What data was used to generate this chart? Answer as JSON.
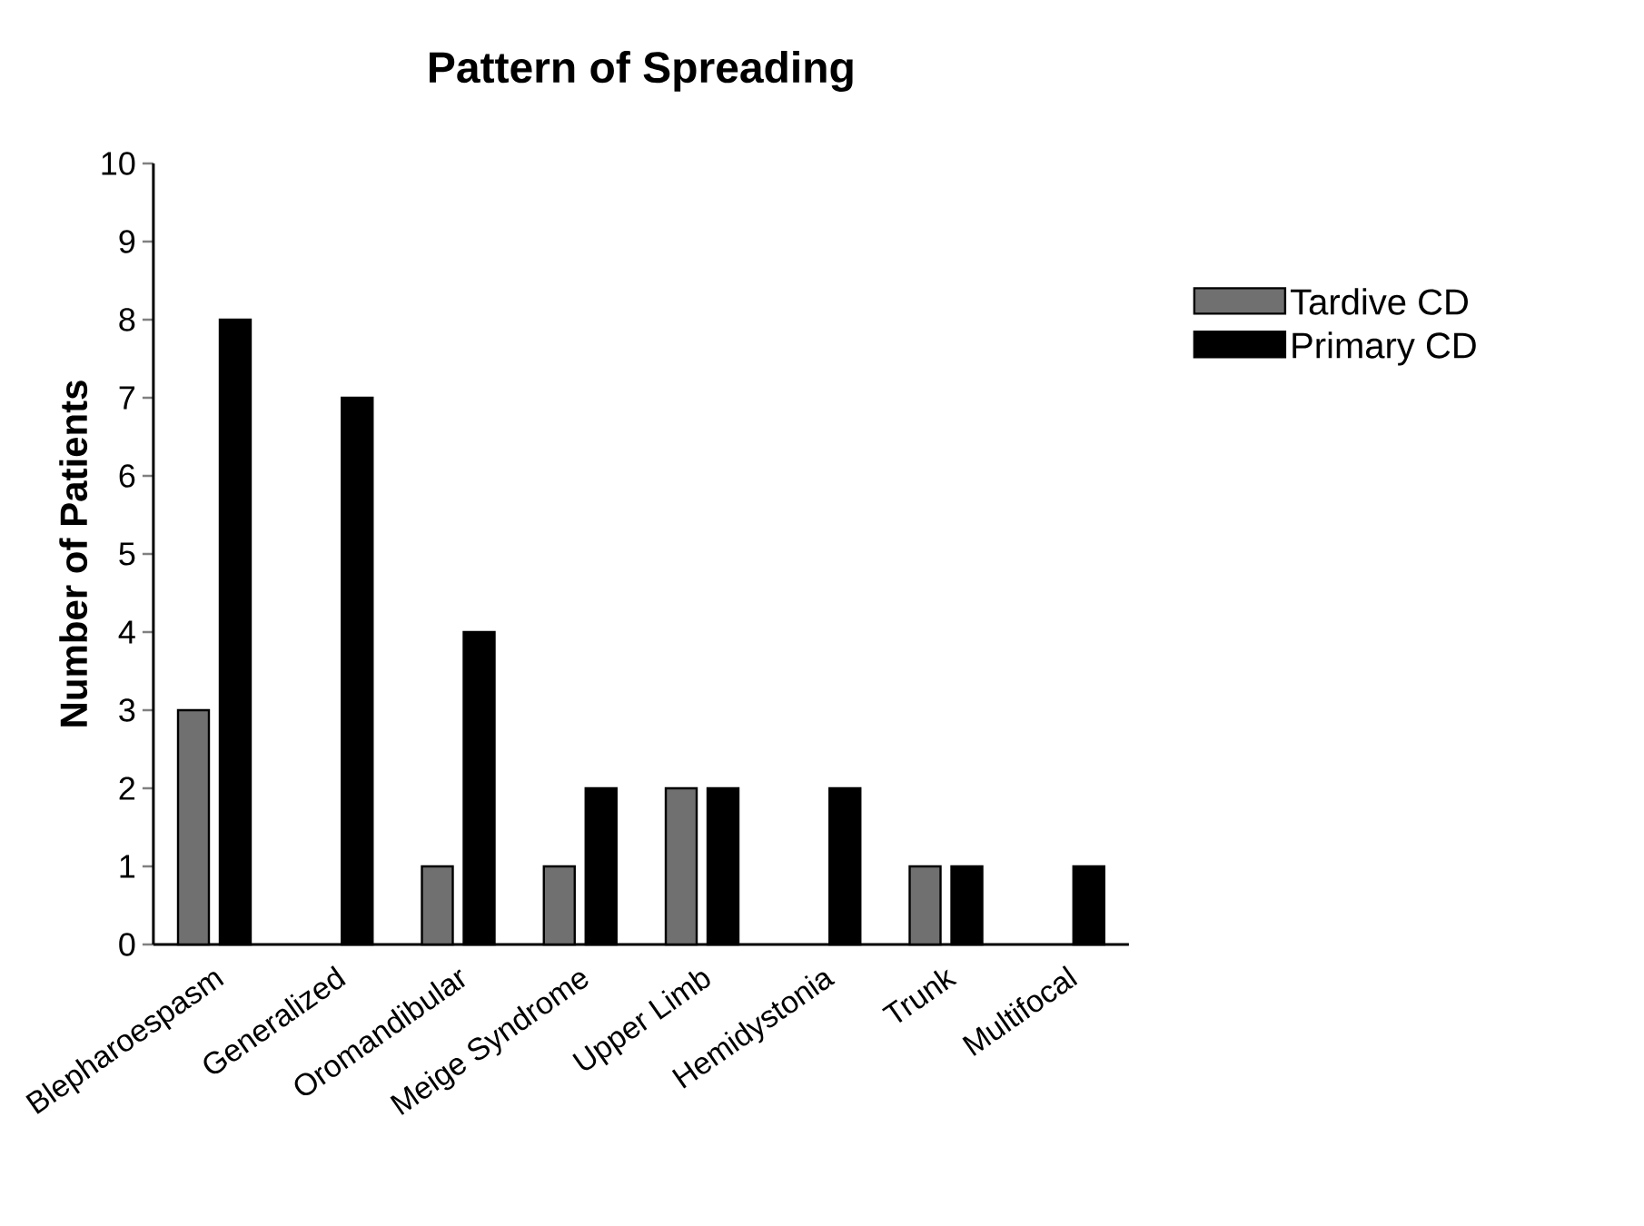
{
  "chart_data": {
    "type": "bar",
    "title": "Pattern of Spreading",
    "ylabel": "Number of Patients",
    "categories": [
      "Blepharoespasm",
      "Generalized",
      "Oromandibular",
      "Meige Syndrome",
      "Upper Limb",
      "Hemidystonia",
      "Trunk",
      "Multifocal"
    ],
    "series": [
      {
        "name": "Tardive CD",
        "color": "#707070",
        "values": [
          3,
          0,
          1,
          1,
          2,
          0,
          1,
          0
        ]
      },
      {
        "name": "Primary CD",
        "color": "#000000",
        "values": [
          8,
          7,
          4,
          2,
          2,
          2,
          1,
          1
        ]
      }
    ],
    "ylim": [
      0,
      10
    ],
    "yticks": [
      0,
      1,
      2,
      3,
      4,
      5,
      6,
      7,
      8,
      9,
      10
    ],
    "grid": false,
    "legend": "right"
  }
}
